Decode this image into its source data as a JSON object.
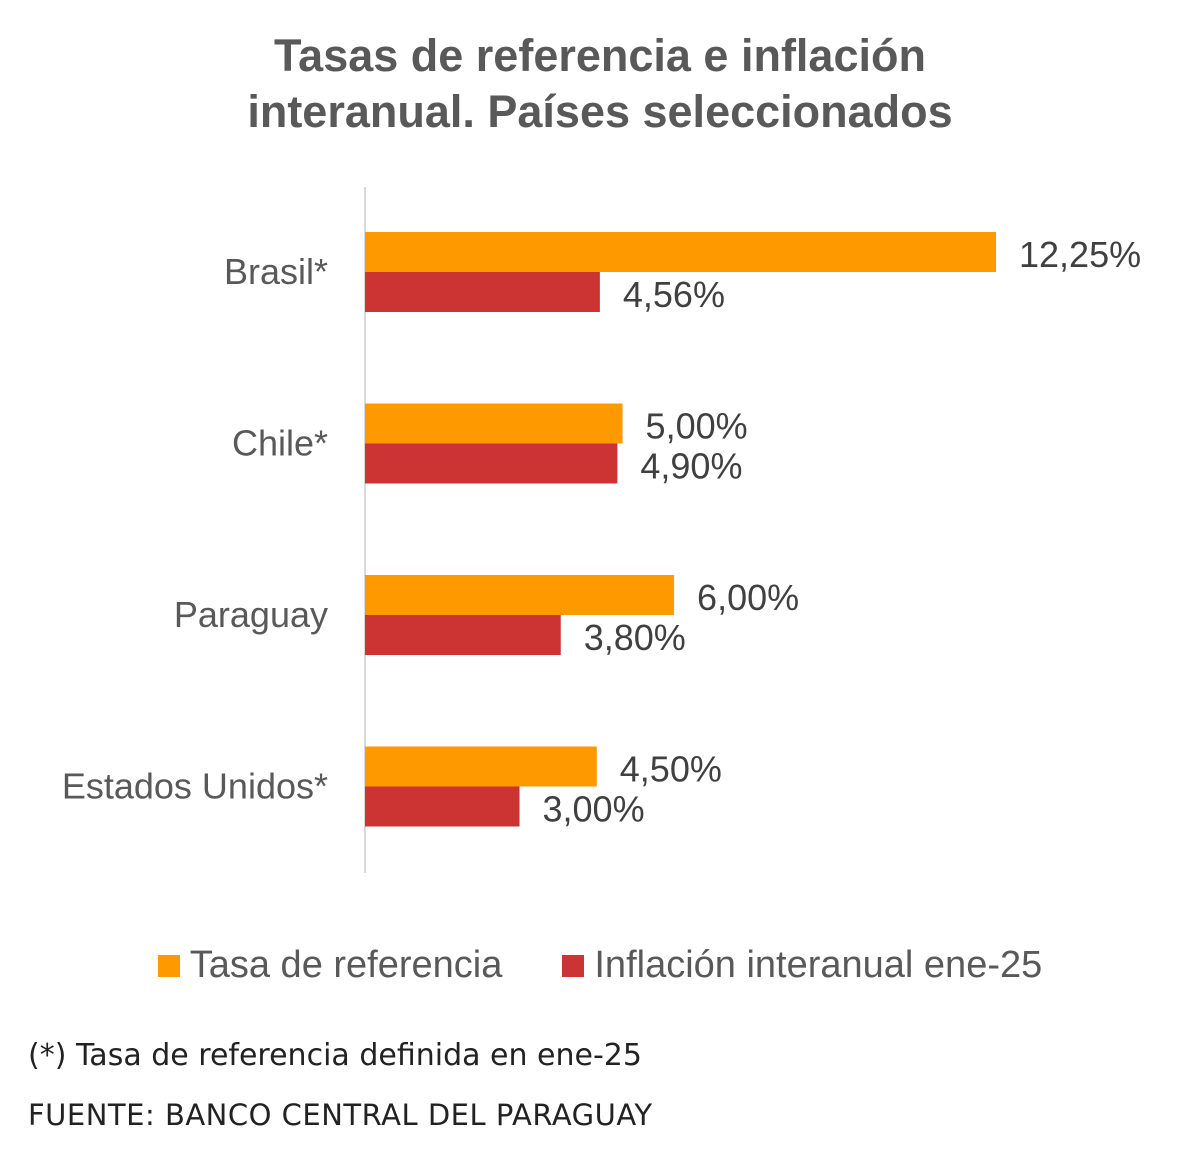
{
  "chart_data": {
    "type": "bar",
    "orientation": "horizontal",
    "title_lines": [
      "Tasas de referencia e inflación",
      "interanual. Países seleccionados"
    ],
    "categories": [
      "Brasil*",
      "Chile*",
      "Paraguay",
      "Estados Unidos*"
    ],
    "series": [
      {
        "name": "Tasa de referencia",
        "color": "#ff9900",
        "values": [
          12.25,
          5.0,
          6.0,
          4.5
        ],
        "labels": [
          "12,25%",
          "5,00%",
          "6,00%",
          "4,50%"
        ]
      },
      {
        "name": "Inflación interanual ene-25",
        "color": "#cc3333",
        "values": [
          4.56,
          4.9,
          3.8,
          3.0
        ],
        "labels": [
          "4,56%",
          "4,90%",
          "3,80%",
          "3,00%"
        ]
      }
    ],
    "xlim": [
      0,
      12.25
    ],
    "legend_position": "bottom",
    "grid": false,
    "axis_color": "#d9d9d9"
  },
  "notes": {
    "footnote": "(*) Tasa de referencia definida en ene-25",
    "source": "FUENTE: BANCO CENTRAL DEL PARAGUAY"
  }
}
